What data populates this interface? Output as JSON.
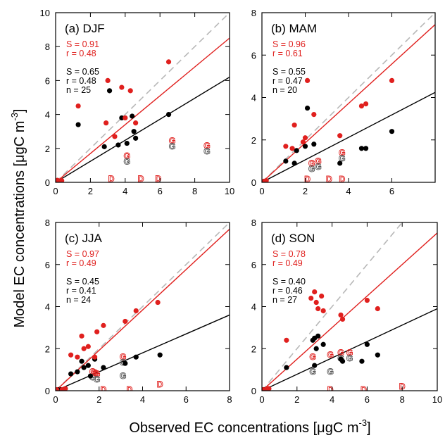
{
  "figure": {
    "xlabel": "Observed EC concentrations [μgC m",
    "xlabel_sup": "-3",
    "xlabel_end": "]",
    "ylabel": "Model EC concentrations [μgC m",
    "ylabel_sup": "-3",
    "ylabel_end": "]"
  },
  "colors": {
    "red": "#e0201e",
    "black": "#000000",
    "one_to_one": "#b8b8b8",
    "hollow_red": "#e07a78"
  },
  "chart_data": [
    {
      "type": "scatter",
      "title": "(a) DJF",
      "xlim": [
        0,
        10
      ],
      "ylim": [
        0,
        10
      ],
      "xticks": [
        0,
        2,
        4,
        6,
        8,
        10
      ],
      "yticks": [
        0,
        2,
        4,
        6,
        8,
        10
      ],
      "stats_red": [
        "S =  0.91",
        "r =  0.48"
      ],
      "stats_black": [
        "S =  0.65",
        "r =  0.48",
        "n = 25"
      ],
      "fit_red": {
        "slope": 0.85,
        "intercept": 0.0
      },
      "fit_black": {
        "slope": 0.62,
        "intercept": 0.0
      },
      "red_points": [
        [
          1.3,
          4.5
        ],
        [
          2.9,
          3.5
        ],
        [
          3.0,
          6.0
        ],
        [
          3.4,
          2.7
        ],
        [
          3.8,
          5.6
        ],
        [
          4.0,
          3.8
        ],
        [
          4.3,
          5.4
        ],
        [
          4.6,
          3.5
        ],
        [
          6.5,
          7.1
        ],
        [
          0.05,
          0.05
        ],
        [
          0.15,
          0.08
        ],
        [
          0.25,
          0.05
        ],
        [
          0.35,
          0.1
        ],
        [
          0.1,
          0.12
        ]
      ],
      "black_points": [
        [
          1.3,
          3.4
        ],
        [
          2.8,
          2.1
        ],
        [
          3.1,
          5.4
        ],
        [
          3.6,
          2.2
        ],
        [
          3.8,
          3.8
        ],
        [
          4.1,
          2.3
        ],
        [
          4.4,
          3.9
        ],
        [
          4.5,
          3.0
        ],
        [
          4.6,
          2.6
        ],
        [
          6.5,
          4.0
        ],
        [
          0.05,
          0.05
        ],
        [
          0.2,
          0.05
        ]
      ],
      "letters": [
        {
          "t": "G",
          "x": 4.1,
          "y": 1.3,
          "c": "both"
        },
        {
          "t": "G",
          "x": 6.7,
          "y": 2.2,
          "c": "both"
        },
        {
          "t": "G",
          "x": 8.7,
          "y": 1.9,
          "c": "both"
        },
        {
          "t": "D",
          "x": 3.2,
          "y": 0.2,
          "c": "red"
        },
        {
          "t": "D",
          "x": 4.9,
          "y": 0.2,
          "c": "red"
        },
        {
          "t": "D",
          "x": 5.9,
          "y": 0.2,
          "c": "red"
        }
      ]
    },
    {
      "type": "scatter",
      "title": "(b) MAM",
      "xlim": [
        0,
        8
      ],
      "ylim": [
        0,
        8
      ],
      "xticks": [
        0,
        2,
        4,
        6
      ],
      "yticks": [
        0,
        2,
        4,
        6,
        8
      ],
      "stats_red": [
        "S =  0.96",
        "r =  0.61"
      ],
      "stats_black": [
        "S =  0.55",
        "r =  0.47",
        "n = 20"
      ],
      "fit_red": {
        "slope": 0.93,
        "intercept": 0.0
      },
      "fit_black": {
        "slope": 0.53,
        "intercept": 0.0
      },
      "red_points": [
        [
          1.1,
          1.7
        ],
        [
          1.4,
          1.6
        ],
        [
          1.5,
          2.7
        ],
        [
          1.9,
          1.9
        ],
        [
          2.0,
          2.1
        ],
        [
          2.1,
          4.8
        ],
        [
          2.4,
          3.2
        ],
        [
          3.6,
          2.2
        ],
        [
          4.6,
          3.6
        ],
        [
          4.8,
          3.7
        ],
        [
          6.0,
          4.8
        ],
        [
          0.1,
          0.05
        ],
        [
          0.2,
          0.08
        ]
      ],
      "black_points": [
        [
          1.1,
          1.0
        ],
        [
          1.5,
          0.9
        ],
        [
          1.6,
          1.5
        ],
        [
          2.0,
          1.7
        ],
        [
          2.1,
          3.5
        ],
        [
          2.4,
          1.8
        ],
        [
          3.6,
          0.9
        ],
        [
          4.6,
          1.6
        ],
        [
          4.8,
          1.6
        ],
        [
          6.0,
          2.4
        ],
        [
          0.1,
          0.05
        ]
      ],
      "letters": [
        {
          "t": "G",
          "x": 2.3,
          "y": 0.7,
          "c": "both"
        },
        {
          "t": "G",
          "x": 2.6,
          "y": 0.8,
          "c": "both"
        },
        {
          "t": "G",
          "x": 3.7,
          "y": 1.2,
          "c": "both"
        },
        {
          "t": "D",
          "x": 2.1,
          "y": 0.15,
          "c": "red"
        },
        {
          "t": "D",
          "x": 3.1,
          "y": 0.15,
          "c": "red"
        },
        {
          "t": "D",
          "x": 3.7,
          "y": 0.15,
          "c": "red"
        }
      ]
    },
    {
      "type": "scatter",
      "title": "(c) JJA",
      "xlim": [
        0,
        8
      ],
      "ylim": [
        0,
        8
      ],
      "xticks": [
        0,
        2,
        4,
        6,
        8
      ],
      "yticks": [
        0,
        2,
        4,
        6,
        8
      ],
      "stats_red": [
        "S =  0.97",
        "r =  0.49"
      ],
      "stats_black": [
        "S =  0.45",
        "r =  0.41",
        "n = 24"
      ],
      "fit_red": {
        "slope": 0.96,
        "intercept": 0.0
      },
      "fit_black": {
        "slope": 0.45,
        "intercept": 0.0
      },
      "red_points": [
        [
          0.7,
          1.7
        ],
        [
          1.0,
          1.6
        ],
        [
          1.2,
          2.6
        ],
        [
          1.3,
          2.0
        ],
        [
          1.5,
          2.1
        ],
        [
          1.8,
          1.6
        ],
        [
          1.9,
          2.8
        ],
        [
          2.2,
          3.1
        ],
        [
          3.2,
          3.3
        ],
        [
          3.7,
          3.8
        ],
        [
          4.7,
          4.2
        ],
        [
          0.05,
          0.05
        ],
        [
          0.3,
          0.05
        ],
        [
          0.45,
          0.1
        ]
      ],
      "black_points": [
        [
          0.7,
          0.8
        ],
        [
          1.0,
          0.9
        ],
        [
          1.2,
          1.4
        ],
        [
          1.3,
          1.1
        ],
        [
          1.5,
          1.2
        ],
        [
          1.6,
          0.7
        ],
        [
          1.8,
          1.5
        ],
        [
          2.2,
          1.1
        ],
        [
          3.2,
          1.3
        ],
        [
          3.7,
          1.6
        ],
        [
          4.8,
          1.7
        ],
        [
          0.1,
          0.05
        ],
        [
          0.25,
          0.05
        ]
      ],
      "letters": [
        {
          "t": "G",
          "x": 1.7,
          "y": 0.7,
          "c": "both"
        },
        {
          "t": "G",
          "x": 1.8,
          "y": 0.85,
          "c": "red"
        },
        {
          "t": "G",
          "x": 1.9,
          "y": 0.6,
          "c": "both"
        },
        {
          "t": "G",
          "x": 3.1,
          "y": 1.4,
          "c": "both"
        },
        {
          "t": "G",
          "x": 3.1,
          "y": 0.7,
          "c": "black"
        },
        {
          "t": "D",
          "x": 2.2,
          "y": 0.05,
          "c": "red"
        },
        {
          "t": "D",
          "x": 3.4,
          "y": 0.05,
          "c": "red"
        },
        {
          "t": "D",
          "x": 4.8,
          "y": 0.3,
          "c": "red"
        }
      ]
    },
    {
      "type": "scatter",
      "title": "(d) SON",
      "xlim": [
        0,
        10
      ],
      "ylim": [
        0,
        8
      ],
      "xticks": [
        0,
        2,
        4,
        6,
        8,
        10
      ],
      "yticks": [
        0,
        2,
        4,
        6,
        8
      ],
      "stats_red": [
        "S =  0.78",
        "r =  0.49"
      ],
      "stats_black": [
        "S =  0.40",
        "r =  0.46",
        "n = 27"
      ],
      "fit_red": {
        "slope": 0.75,
        "intercept": 0.0
      },
      "fit_black": {
        "slope": 0.39,
        "intercept": 0.0
      },
      "red_points": [
        [
          1.4,
          2.4
        ],
        [
          2.8,
          4.4
        ],
        [
          3.0,
          4.7
        ],
        [
          3.1,
          4.2
        ],
        [
          3.2,
          3.9
        ],
        [
          3.4,
          4.5
        ],
        [
          3.5,
          3.8
        ],
        [
          4.5,
          3.6
        ],
        [
          4.6,
          3.4
        ],
        [
          6.0,
          4.3
        ],
        [
          6.6,
          3.9
        ],
        [
          0.05,
          0.05
        ],
        [
          0.2,
          0.05
        ],
        [
          0.3,
          0.08
        ],
        [
          0.4,
          0.1
        ]
      ],
      "black_points": [
        [
          1.4,
          1.1
        ],
        [
          2.9,
          2.4
        ],
        [
          3.0,
          1.2
        ],
        [
          3.0,
          2.5
        ],
        [
          3.1,
          2.0
        ],
        [
          3.2,
          2.6
        ],
        [
          3.5,
          2.2
        ],
        [
          4.5,
          1.5
        ],
        [
          4.6,
          1.4
        ],
        [
          5.7,
          1.4
        ],
        [
          6.0,
          2.2
        ],
        [
          6.6,
          1.7
        ],
        [
          0.1,
          0.05
        ]
      ],
      "letters": [
        {
          "t": "G",
          "x": 2.9,
          "y": 1.6,
          "c": "red"
        },
        {
          "t": "G",
          "x": 2.9,
          "y": 0.9,
          "c": "black"
        },
        {
          "t": "G",
          "x": 3.9,
          "y": 1.7,
          "c": "red"
        },
        {
          "t": "G",
          "x": 3.9,
          "y": 0.9,
          "c": "black"
        },
        {
          "t": "G",
          "x": 4.5,
          "y": 1.6,
          "c": "both"
        },
        {
          "t": "G",
          "x": 5.0,
          "y": 1.6,
          "c": "both"
        },
        {
          "t": "D",
          "x": 3.9,
          "y": 0.05,
          "c": "red"
        },
        {
          "t": "D",
          "x": 5.8,
          "y": 0.05,
          "c": "red"
        },
        {
          "t": "D",
          "x": 8.0,
          "y": 0.2,
          "c": "red"
        }
      ]
    }
  ]
}
